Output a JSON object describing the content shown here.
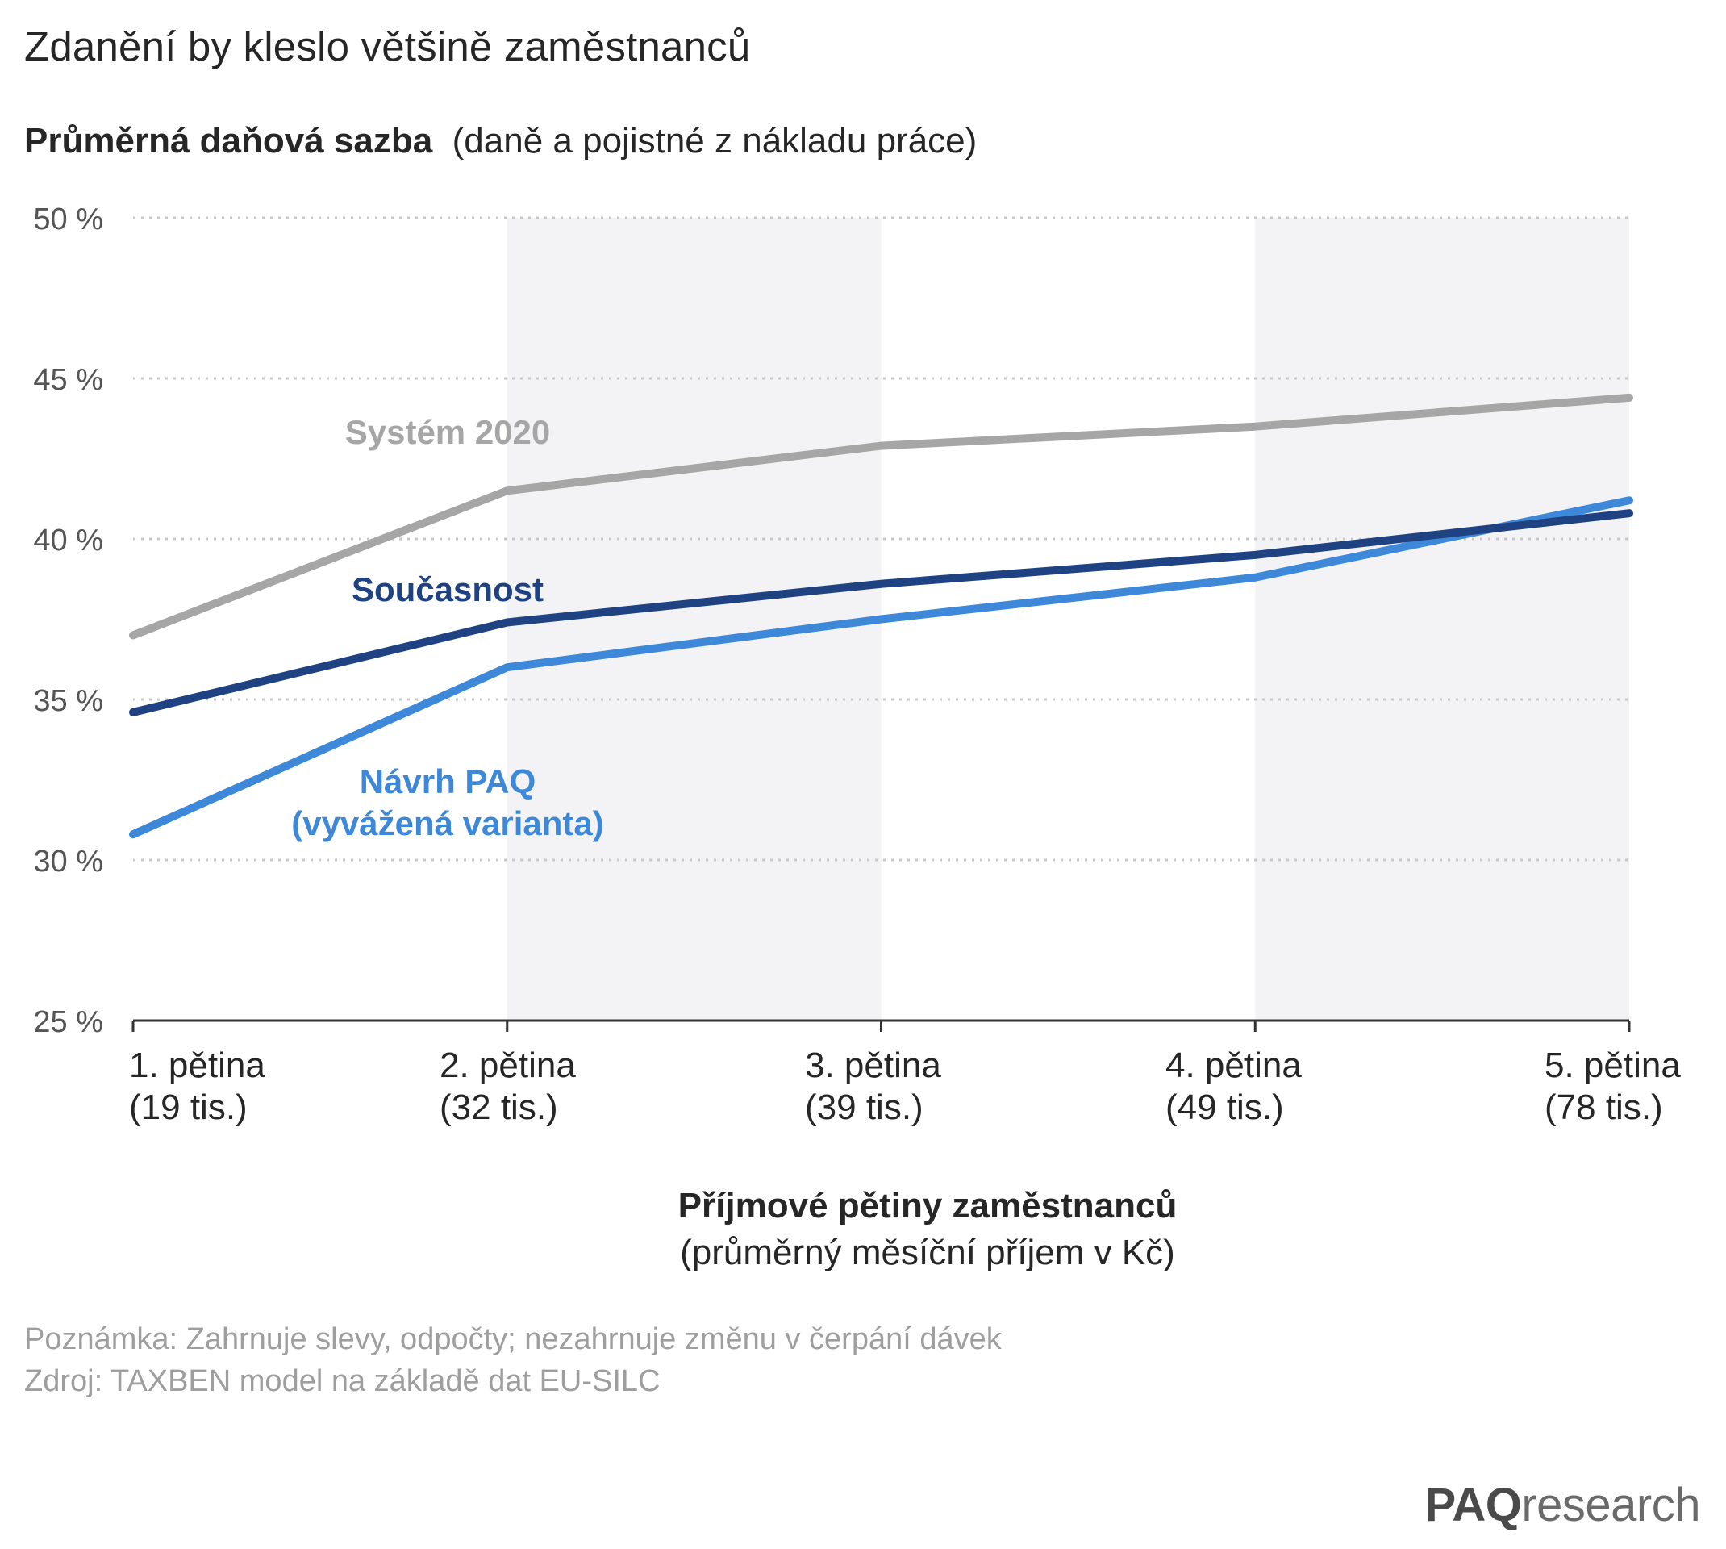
{
  "title": "Zdanění by kleslo většině zaměstnanců",
  "subtitle_bold": "Průměrná daňová sazba",
  "subtitle_rest": "(daně a pojistné z nákladu práce)",
  "xlabel_line1": "Příjmové pětiny zaměstnanců",
  "xlabel_line2": "(průměrný měsíční příjem v Kč)",
  "note_line1": "Poznámka: Zahrnuje slevy, odpočty; nezahrnuje změnu v čerpání dávek",
  "note_line2": "Zdroj: TAXBEN model na základě dat EU-SILC",
  "logo_bold": "PAQ",
  "logo_rest": "research",
  "colors": {
    "system2020": "#a6a6a6",
    "soucasnost": "#1f4282",
    "navrh": "#3d88d8",
    "band": "#f3f3f5",
    "grid": "#c8c8c8",
    "axis": "#333333"
  },
  "chart_data": {
    "type": "line",
    "ylim": [
      25,
      50
    ],
    "yticks": [
      "25 %",
      "30 %",
      "35 %",
      "40 %",
      "45 %",
      "50 %"
    ],
    "ytick_values": [
      25,
      30,
      35,
      40,
      45,
      50
    ],
    "categories": [
      [
        "1. pětina",
        "(19 tis.)"
      ],
      [
        "2. pětina",
        "(32 tis.)"
      ],
      [
        "3. pětina",
        "(39 tis.)"
      ],
      [
        "4. pětina",
        "(49 tis.)"
      ],
      [
        "5. pětina",
        "(78 tis.)"
      ]
    ],
    "grid": true,
    "series": [
      {
        "name": "Systém 2020",
        "values": [
          37.0,
          41.5,
          42.9,
          43.5,
          44.4
        ]
      },
      {
        "name": "Současnost",
        "values": [
          34.6,
          37.4,
          38.6,
          39.5,
          40.8
        ]
      },
      {
        "name": "Návrh PAQ (vyvážená varianta)",
        "label_lines": [
          "Návrh PAQ",
          "(vyvážená varianta)"
        ],
        "values": [
          30.8,
          36.0,
          37.5,
          38.8,
          41.2
        ]
      }
    ]
  }
}
